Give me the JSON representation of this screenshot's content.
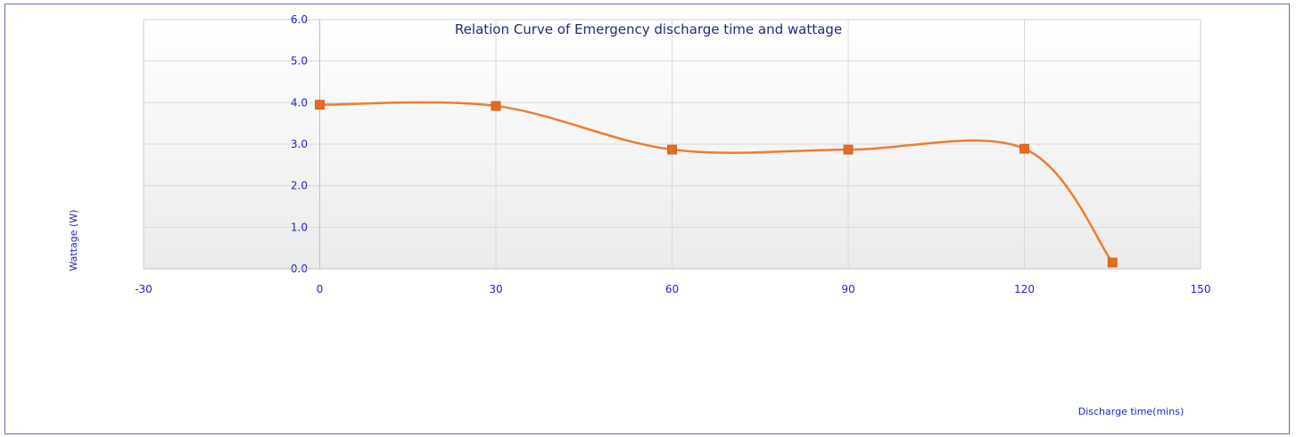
{
  "chart_data": {
    "type": "line",
    "title": "Relation Curve of Emergency discharge time and wattage",
    "xlabel": "Discharge time(mins)",
    "ylabel": "Wattage (W)",
    "xlim": [
      -30,
      150
    ],
    "ylim": [
      0,
      6
    ],
    "xticks": [
      "-30",
      "0",
      "30",
      "60",
      "90",
      "120",
      "150"
    ],
    "yticks": [
      "0.0",
      "1.0",
      "2.0",
      "3.0",
      "4.0",
      "5.0",
      "6.0"
    ],
    "grid": true,
    "legend": "none",
    "smooth": true,
    "series": [
      {
        "x": [
          0,
          30,
          60,
          90,
          120,
          135
        ],
        "y": [
          3.95,
          3.92,
          2.87,
          2.87,
          2.89,
          0.15
        ]
      }
    ],
    "colors": {
      "line": "#ed7d31",
      "marker": "#e46c1e",
      "text": "#2323c8",
      "grid": "#d9d9d9"
    }
  }
}
